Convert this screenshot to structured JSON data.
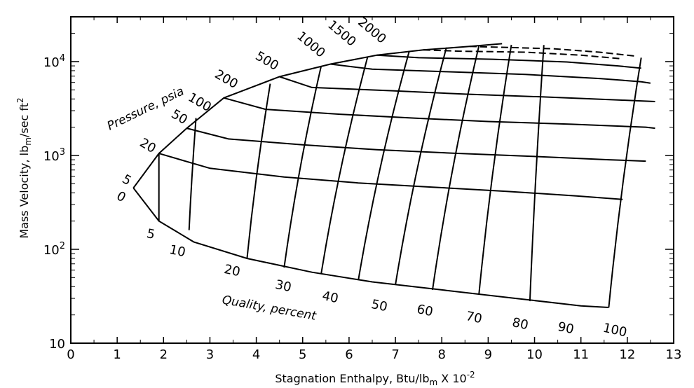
{
  "chart_data": {
    "type": "line",
    "title": "",
    "xlabel": "Stagnation Enthalpy, Btu/lb",
    "xlabel_sub": "m",
    "xlabel_suffix": " X 10",
    "xlabel_exp": "-2",
    "ylabel": "Mass Velocity, lb",
    "ylabel_sub": "m",
    "ylabel_suffix": "/sec ft",
    "ylabel_exp": "2",
    "xlim": [
      0,
      13
    ],
    "ylim": [
      10,
      30000
    ],
    "yscale": "log",
    "grid": false,
    "x_ticks": [
      "0",
      "1",
      "2",
      "3",
      "4",
      "5",
      "6",
      "7",
      "8",
      "9",
      "10",
      "11",
      "12",
      "13"
    ],
    "y_ticks": [
      {
        "value": 10,
        "base": "10",
        "exp": ""
      },
      {
        "value": 100,
        "base": "10",
        "exp": "2"
      },
      {
        "value": 1000,
        "base": "10",
        "exp": "3"
      },
      {
        "value": 10000,
        "base": "10",
        "exp": "4"
      }
    ],
    "pressure_label": "Pressure, psia",
    "quality_label": "Quality, percent",
    "pressure_lines": [
      {
        "label": "0",
        "points": [
          [
            1.35,
            450
          ],
          [
            1.9,
            200
          ],
          [
            2.65,
            120
          ],
          [
            3.8,
            80
          ],
          [
            5.2,
            57
          ],
          [
            6.5,
            45
          ],
          [
            8,
            37
          ],
          [
            9.6,
            30
          ],
          [
            11.0,
            25
          ],
          [
            11.6,
            24
          ]
        ]
      },
      {
        "label": "5",
        "points": [
          [
            1.35,
            450
          ],
          [
            1.9,
            1050
          ],
          [
            2.5,
            1950
          ],
          [
            3.3,
            4100
          ],
          [
            4.5,
            6900
          ],
          [
            5.6,
            9400
          ],
          [
            6.6,
            11700
          ],
          [
            7.6,
            13300
          ],
          [
            8.6,
            14500
          ],
          [
            9.3,
            15500
          ]
        ]
      },
      {
        "label": "20",
        "points": [
          [
            1.9,
            1050
          ],
          [
            3.0,
            730
          ],
          [
            4.6,
            590
          ],
          [
            6.2,
            510
          ],
          [
            7.8,
            460
          ],
          [
            9.4,
            415
          ],
          [
            10.9,
            370
          ],
          [
            11.9,
            340
          ]
        ]
      },
      {
        "label": "50",
        "points": [
          [
            2.5,
            1950
          ],
          [
            3.4,
            1500
          ],
          [
            5.0,
            1300
          ],
          [
            6.6,
            1150
          ],
          [
            8.2,
            1060
          ],
          [
            9.9,
            980
          ],
          [
            11.6,
            900
          ],
          [
            12.4,
            870
          ]
        ]
      },
      {
        "label": "100",
        "points": [
          [
            3.3,
            4100
          ],
          [
            4.2,
            3100
          ],
          [
            5.8,
            2750
          ],
          [
            7.4,
            2500
          ],
          [
            9.0,
            2300
          ],
          [
            10.8,
            2150
          ],
          [
            12.4,
            2000
          ],
          [
            12.6,
            1950
          ]
        ]
      },
      {
        "label": "200",
        "points": [
          [
            4.5,
            6900
          ],
          [
            5.2,
            5300
          ],
          [
            6.9,
            4900
          ],
          [
            8.5,
            4500
          ],
          [
            10.2,
            4200
          ],
          [
            11.8,
            3900
          ],
          [
            12.6,
            3750
          ]
        ]
      },
      {
        "label": "500",
        "points": [
          [
            5.6,
            9400
          ],
          [
            6.5,
            8300
          ],
          [
            8.1,
            7800
          ],
          [
            9.8,
            7300
          ],
          [
            11.4,
            6600
          ],
          [
            12.3,
            6100
          ],
          [
            12.5,
            5900
          ]
        ]
      },
      {
        "label": "1000",
        "points": [
          [
            6.6,
            11700
          ],
          [
            7.5,
            11000
          ],
          [
            9.1,
            10600
          ],
          [
            10.7,
            9900
          ],
          [
            11.8,
            9000
          ],
          [
            12.3,
            8500
          ]
        ]
      },
      {
        "label": "1500",
        "points": [
          [
            7.6,
            13300
          ],
          [
            8.4,
            12900
          ],
          [
            9.8,
            12600
          ],
          [
            11.0,
            11700
          ],
          [
            11.9,
            10700
          ]
        ]
      },
      {
        "label": "2000",
        "points": [
          [
            8.6,
            14500
          ],
          [
            9.3,
            14200
          ],
          [
            10.4,
            13700
          ],
          [
            11.4,
            12600
          ],
          [
            12.2,
            11400
          ]
        ]
      }
    ],
    "quality_lines": [
      {
        "label": "5",
        "bottom": [
          1.9,
          200
        ],
        "top": [
          1.9,
          1050
        ]
      },
      {
        "label": "10",
        "bottom": [
          2.55,
          160
        ],
        "top": [
          2.7,
          2500
        ]
      },
      {
        "label": "20",
        "bottom": [
          3.8,
          80
        ],
        "top": [
          4.3,
          5800
        ]
      },
      {
        "label": "30",
        "bottom": [
          4.6,
          64
        ],
        "top": [
          5.4,
          9000
        ]
      },
      {
        "label": "40",
        "bottom": [
          5.4,
          55
        ],
        "top": [
          6.4,
          11200
        ]
      },
      {
        "label": "50",
        "bottom": [
          6.2,
          47
        ],
        "top": [
          7.3,
          13000
        ]
      },
      {
        "label": "60",
        "bottom": [
          7.0,
          42
        ],
        "top": [
          8.1,
          14100
        ]
      },
      {
        "label": "70",
        "bottom": [
          7.8,
          37
        ],
        "top": [
          8.8,
          14700
        ]
      },
      {
        "label": "80",
        "bottom": [
          8.8,
          33
        ],
        "top": [
          9.5,
          15100
        ]
      },
      {
        "label": "90",
        "bottom": [
          9.9,
          28
        ],
        "top": [
          10.2,
          15000
        ]
      },
      {
        "label": "100",
        "bottom": [
          11.6,
          24
        ],
        "top": [
          12.3,
          11000
        ]
      }
    ]
  }
}
